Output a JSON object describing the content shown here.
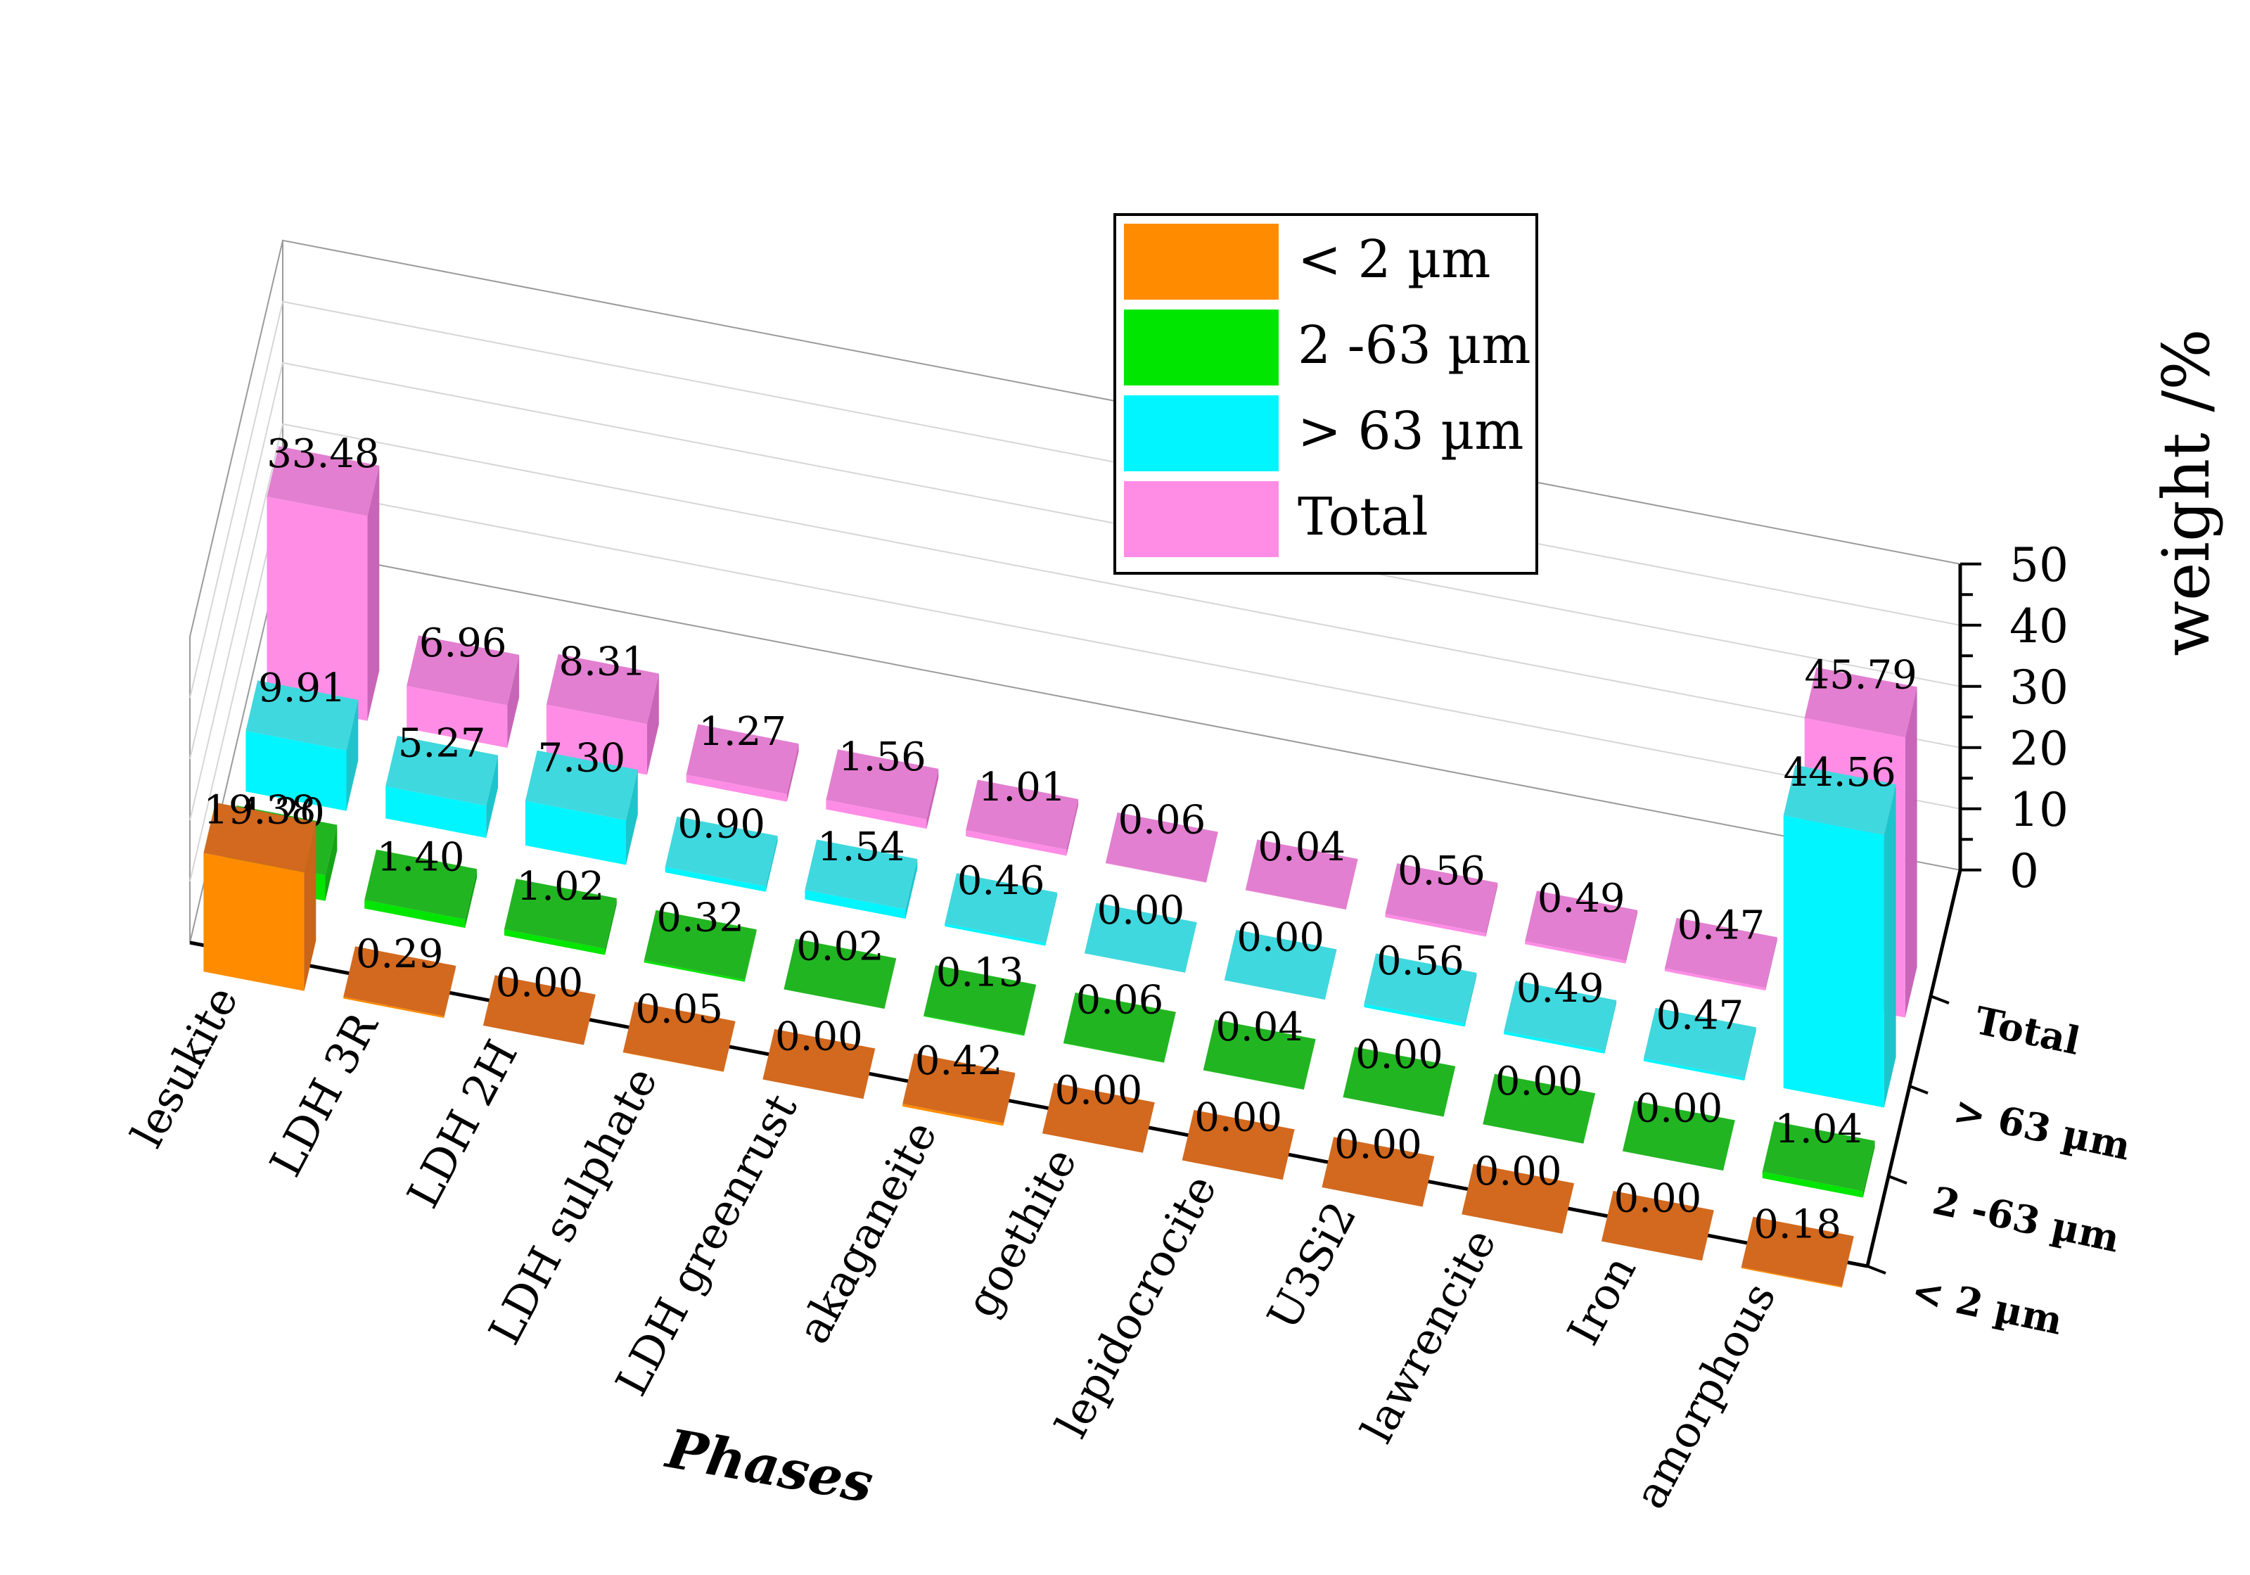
{
  "chart_data": {
    "type": "bar",
    "title": "",
    "xlabel": "Phases",
    "ylabel": "weight /%",
    "zlim": [
      0,
      50
    ],
    "zticks": [
      0,
      10,
      20,
      30,
      40,
      50
    ],
    "categories": [
      "lesukite",
      "LDH 3R",
      "LDH 2H",
      "LDH sulphate",
      "LDH greenrust",
      "akaganeite",
      "goethite",
      "lepidocrocite",
      "U3Si2",
      "lawrencite",
      "Iron",
      "amorphous"
    ],
    "series": [
      {
        "name": "< 2 µm",
        "color": "#ff8c00",
        "side": "#c9651b",
        "top": "#d2691e",
        "values": [
          19.38,
          0.29,
          0.0,
          0.05,
          0.0,
          0.42,
          0.0,
          0.0,
          0.0,
          0.0,
          0.0,
          0.18
        ],
        "labels": [
          "19.38",
          "0.29",
          "0.00",
          "0.05",
          "0.00",
          "0.42",
          "0.00",
          "0.00",
          "0.00",
          "0.00",
          "0.00",
          "0.18"
        ]
      },
      {
        "name": "2 -63 µm",
        "color": "#00e600",
        "side": "#16a316",
        "top": "#22b522",
        "values": [
          4.2,
          1.4,
          1.02,
          0.32,
          0.02,
          0.13,
          0.06,
          0.04,
          0.0,
          0.0,
          0.0,
          1.04
        ],
        "labels": [
          "4.20",
          "1.40",
          "1.02",
          "0.32",
          "0.02",
          "0.13",
          "0.06",
          "0.04",
          "0.00",
          "0.00",
          "0.00",
          "1.04"
        ]
      },
      {
        "name": "> 63 µm",
        "color": "#00f5ff",
        "side": "#1ec4cc",
        "top": "#3fd8de",
        "values": [
          9.91,
          5.27,
          7.3,
          0.9,
          1.54,
          0.46,
          0.0,
          0.0,
          0.56,
          0.49,
          0.47,
          44.56
        ],
        "labels": [
          "9.91",
          "5.27",
          "7.30",
          "0.90",
          "1.54",
          "0.46",
          "0.00",
          "0.00",
          "0.56",
          "0.49",
          "0.47",
          "44.56"
        ]
      },
      {
        "name": "Total",
        "color": "#ff8de6",
        "side": "#c965b8",
        "top": "#e27fd0",
        "values": [
          33.48,
          6.96,
          8.31,
          1.27,
          1.56,
          1.01,
          0.06,
          0.04,
          0.56,
          0.49,
          0.47,
          45.79
        ],
        "labels": [
          "33.48",
          "6.96",
          "8.31",
          "1.27",
          "1.56",
          "1.01",
          "0.06",
          "0.04",
          "0.56",
          "0.49",
          "0.47",
          "45.79"
        ]
      }
    ],
    "legend": {
      "position": "top-center",
      "entries": [
        "< 2 µm",
        "2 -63 µm",
        "> 63 µm",
        "Total"
      ]
    },
    "depth_axis_labels": [
      "< 2 µm",
      "2 -63 µm",
      "> 63 µm",
      "Total"
    ]
  }
}
